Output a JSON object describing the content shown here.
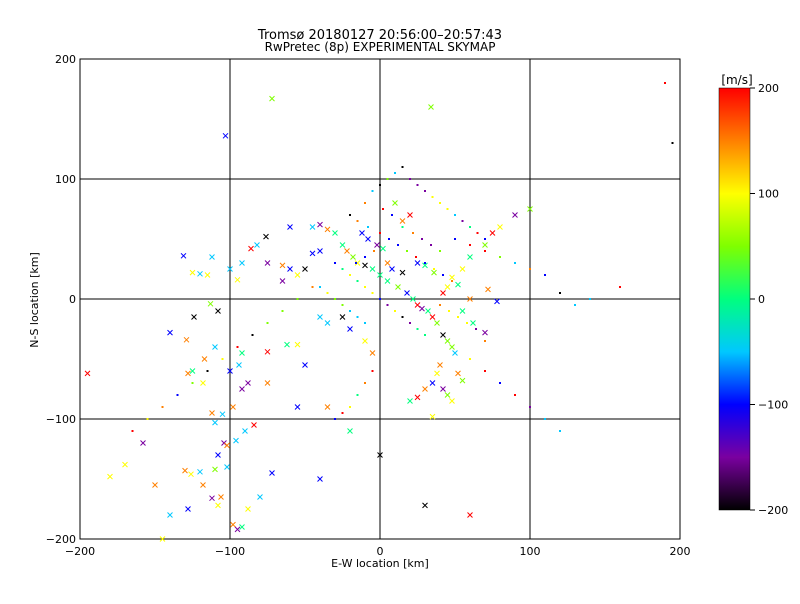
{
  "chart_data": {
    "type": "scatter",
    "title": "Tromsø 20180127 20:56:00–20:57:43",
    "subtitle": "RwPretec (8p) EXPERIMENTAL SKYMAP",
    "xlabel": "E-W location [km]",
    "ylabel": "N-S location [km]",
    "xlim": [
      -200,
      200
    ],
    "ylim": [
      -200,
      200
    ],
    "xticks": [
      -200,
      -100,
      0,
      100,
      200
    ],
    "yticks": [
      -200,
      -100,
      0,
      100,
      200
    ],
    "grid": true,
    "colorbar": {
      "label": "[m/s]",
      "range": [
        -200,
        200
      ],
      "ticks": [
        200,
        100,
        0,
        -100,
        -200
      ],
      "colormap": [
        "#000000",
        "#7a00a0",
        "#0000ff",
        "#00c8ff",
        "#00ff7f",
        "#7fff00",
        "#ffff00",
        "#ff8000",
        "#ff0000"
      ]
    },
    "series": [
      {
        "marker": "x",
        "points": [
          [
            -72,
            167
          ],
          [
            -103,
            136
          ],
          [
            34,
            160
          ],
          [
            -195,
            -62
          ],
          [
            -180,
            -148
          ],
          [
            -170,
            -138
          ],
          [
            -158,
            -120
          ],
          [
            -150,
            -155
          ],
          [
            -145,
            -200
          ],
          [
            -130,
            -143
          ],
          [
            -126,
            -146
          ],
          [
            -120,
            -144
          ],
          [
            -118,
            -155
          ],
          [
            -112,
            -166
          ],
          [
            -110,
            -142
          ],
          [
            -108,
            -130
          ],
          [
            -104,
            -120
          ],
          [
            -102,
            -122
          ],
          [
            -106,
            -165
          ],
          [
            -98,
            -188
          ],
          [
            -95,
            -192
          ],
          [
            -92,
            -190
          ],
          [
            -88,
            -175
          ],
          [
            -80,
            -165
          ],
          [
            -72,
            -145
          ],
          [
            -90,
            -110
          ],
          [
            -84,
            -105
          ],
          [
            -112,
            -95
          ],
          [
            -110,
            -103
          ],
          [
            -105,
            -96
          ],
          [
            -98,
            -90
          ],
          [
            -92,
            -75
          ],
          [
            -88,
            -70
          ],
          [
            -100,
            -60
          ],
          [
            -94,
            -55
          ],
          [
            -92,
            -45
          ],
          [
            -75,
            -44
          ],
          [
            -62,
            -38
          ],
          [
            -55,
            -38
          ],
          [
            -50,
            -55
          ],
          [
            -110,
            -40
          ],
          [
            -117,
            -50
          ],
          [
            -129,
            -34
          ],
          [
            -140,
            -28
          ],
          [
            -125,
            -60
          ],
          [
            -128,
            -62
          ],
          [
            -118,
            -70
          ],
          [
            -124,
            -15
          ],
          [
            -113,
            -4
          ],
          [
            -108,
            -10
          ],
          [
            -125,
            22
          ],
          [
            -120,
            21
          ],
          [
            -115,
            20
          ],
          [
            -131,
            36
          ],
          [
            -112,
            35
          ],
          [
            -100,
            25
          ],
          [
            -92,
            30
          ],
          [
            -86,
            42
          ],
          [
            -82,
            45
          ],
          [
            -76,
            52
          ],
          [
            -60,
            25
          ],
          [
            -65,
            15
          ],
          [
            -55,
            20
          ],
          [
            -50,
            25
          ],
          [
            -45,
            38
          ],
          [
            -40,
            40
          ],
          [
            -45,
            60
          ],
          [
            -40,
            62
          ],
          [
            -35,
            58
          ],
          [
            -30,
            55
          ],
          [
            -25,
            45
          ],
          [
            -22,
            40
          ],
          [
            -18,
            35
          ],
          [
            -15,
            30
          ],
          [
            -10,
            28
          ],
          [
            -5,
            25
          ],
          [
            0,
            20
          ],
          [
            5,
            15
          ],
          [
            12,
            10
          ],
          [
            18,
            5
          ],
          [
            22,
            0
          ],
          [
            25,
            -5
          ],
          [
            28,
            -8
          ],
          [
            32,
            -10
          ],
          [
            35,
            -15
          ],
          [
            38,
            -20
          ],
          [
            42,
            -30
          ],
          [
            45,
            -35
          ],
          [
            48,
            -40
          ],
          [
            50,
            -45
          ],
          [
            40,
            -55
          ],
          [
            38,
            -62
          ],
          [
            35,
            -70
          ],
          [
            30,
            -75
          ],
          [
            25,
            -82
          ],
          [
            20,
            -85
          ],
          [
            42,
            -75
          ],
          [
            45,
            -80
          ],
          [
            48,
            -85
          ],
          [
            52,
            -62
          ],
          [
            55,
            -68
          ],
          [
            35,
            -98
          ],
          [
            0,
            -130
          ],
          [
            60,
            -180
          ],
          [
            30,
            -172
          ],
          [
            -40,
            -150
          ],
          [
            -20,
            -110
          ],
          [
            -35,
            -90
          ],
          [
            -55,
            -90
          ],
          [
            -75,
            -70
          ],
          [
            -60,
            60
          ],
          [
            -65,
            28
          ],
          [
            -40,
            -15
          ],
          [
            -35,
            -20
          ],
          [
            -25,
            -15
          ],
          [
            -20,
            -25
          ],
          [
            -10,
            -35
          ],
          [
            -5,
            -45
          ],
          [
            15,
            65
          ],
          [
            20,
            70
          ],
          [
            10,
            80
          ],
          [
            5,
            30
          ],
          [
            8,
            25
          ],
          [
            15,
            22
          ],
          [
            25,
            30
          ],
          [
            30,
            28
          ],
          [
            36,
            22
          ],
          [
            48,
            18
          ],
          [
            55,
            25
          ],
          [
            60,
            35
          ],
          [
            70,
            45
          ],
          [
            75,
            55
          ],
          [
            80,
            60
          ],
          [
            90,
            70
          ],
          [
            100,
            75
          ],
          [
            -75,
            30
          ],
          [
            -95,
            16
          ],
          [
            -140,
            -180
          ],
          [
            -128,
            -175
          ],
          [
            -108,
            -172
          ],
          [
            -102,
            -140
          ],
          [
            -96,
            -118
          ],
          [
            -12,
            55
          ],
          [
            -8,
            50
          ],
          [
            -2,
            45
          ],
          [
            2,
            42
          ],
          [
            42,
            5
          ],
          [
            45,
            10
          ],
          [
            52,
            12
          ],
          [
            60,
            0
          ],
          [
            72,
            8
          ],
          [
            78,
            -2
          ],
          [
            55,
            -10
          ],
          [
            62,
            -20
          ],
          [
            70,
            -28
          ]
        ]
      },
      {
        "marker": "dot",
        "points": [
          [
            -10,
            80
          ],
          [
            -5,
            90
          ],
          [
            0,
            95
          ],
          [
            5,
            100
          ],
          [
            10,
            105
          ],
          [
            15,
            110
          ],
          [
            20,
            100
          ],
          [
            25,
            95
          ],
          [
            30,
            90
          ],
          [
            35,
            85
          ],
          [
            40,
            80
          ],
          [
            45,
            75
          ],
          [
            50,
            70
          ],
          [
            55,
            65
          ],
          [
            60,
            60
          ],
          [
            65,
            55
          ],
          [
            70,
            50
          ],
          [
            -20,
            70
          ],
          [
            -15,
            65
          ],
          [
            -8,
            60
          ],
          [
            0,
            55
          ],
          [
            6,
            50
          ],
          [
            12,
            45
          ],
          [
            18,
            40
          ],
          [
            24,
            35
          ],
          [
            30,
            30
          ],
          [
            36,
            25
          ],
          [
            42,
            20
          ],
          [
            48,
            15
          ],
          [
            -30,
            30
          ],
          [
            -25,
            25
          ],
          [
            -20,
            20
          ],
          [
            -15,
            15
          ],
          [
            -10,
            10
          ],
          [
            -5,
            5
          ],
          [
            0,
            0
          ],
          [
            5,
            -5
          ],
          [
            10,
            -10
          ],
          [
            15,
            -15
          ],
          [
            20,
            -20
          ],
          [
            25,
            -25
          ],
          [
            30,
            -30
          ],
          [
            -40,
            10
          ],
          [
            -35,
            5
          ],
          [
            -30,
            0
          ],
          [
            -25,
            -5
          ],
          [
            -20,
            -10
          ],
          [
            -15,
            -15
          ],
          [
            -10,
            -20
          ],
          [
            40,
            40
          ],
          [
            50,
            50
          ],
          [
            60,
            45
          ],
          [
            70,
            40
          ],
          [
            80,
            35
          ],
          [
            90,
            30
          ],
          [
            100,
            25
          ],
          [
            110,
            20
          ],
          [
            120,
            5
          ],
          [
            130,
            -5
          ],
          [
            140,
            0
          ],
          [
            160,
            10
          ],
          [
            190,
            180
          ],
          [
            195,
            130
          ],
          [
            120,
            -110
          ],
          [
            110,
            -100
          ],
          [
            100,
            -90
          ],
          [
            90,
            -80
          ],
          [
            80,
            -70
          ],
          [
            70,
            -60
          ],
          [
            60,
            -50
          ],
          [
            -5,
            -60
          ],
          [
            -10,
            -70
          ],
          [
            -15,
            -80
          ],
          [
            -20,
            -90
          ],
          [
            -25,
            -95
          ],
          [
            -30,
            -100
          ],
          [
            -45,
            10
          ],
          [
            -55,
            0
          ],
          [
            -65,
            -10
          ],
          [
            -75,
            -20
          ],
          [
            -85,
            -30
          ],
          [
            -95,
            -40
          ],
          [
            -105,
            -50
          ],
          [
            -115,
            -60
          ],
          [
            -125,
            -70
          ],
          [
            -135,
            -80
          ],
          [
            -145,
            -90
          ],
          [
            -155,
            -100
          ],
          [
            -165,
            -110
          ],
          [
            15,
            60
          ],
          [
            22,
            55
          ],
          [
            28,
            50
          ],
          [
            34,
            45
          ],
          [
            8,
            70
          ],
          [
            2,
            75
          ],
          [
            -4,
            40
          ],
          [
            -10,
            35
          ],
          [
            -16,
            30
          ],
          [
            40,
            -5
          ],
          [
            46,
            -10
          ],
          [
            52,
            -15
          ],
          [
            58,
            -20
          ],
          [
            64,
            -25
          ],
          [
            70,
            -35
          ]
        ]
      }
    ]
  }
}
